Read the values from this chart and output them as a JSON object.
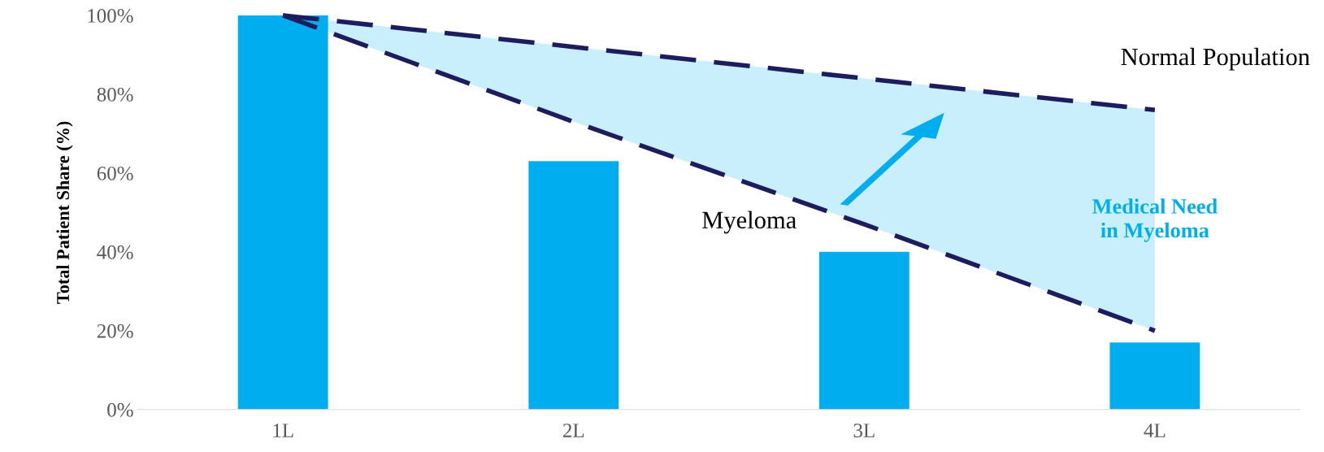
{
  "chart_data": {
    "type": "bar",
    "ylabel": "Total Patient Share (%)",
    "categories": [
      "1L",
      "2L",
      "3L",
      "4L"
    ],
    "series": [
      {
        "type": "bar",
        "color": "#00aeef",
        "values": [
          100,
          63,
          40,
          17
        ]
      },
      {
        "type": "line",
        "name": "Normal Population",
        "color": "#1c1c5e",
        "values": [
          100,
          92,
          84,
          76
        ],
        "lower": [
          100,
          73,
          47,
          20
        ],
        "upper": [
          100,
          92,
          84,
          76
        ]
      },
      {
        "type": "line",
        "name": "Myeloma",
        "color": "#1c1c5e",
        "values": [
          100,
          73,
          47,
          20
        ]
      }
    ],
    "annotations": [
      "Medical Need\nin Myeloma"
    ],
    "ylim": [
      0,
      100
    ],
    "yticks": [
      {
        "value": 0,
        "label": "0%"
      },
      {
        "value": 20,
        "label": "20%"
      },
      {
        "value": 40,
        "label": "40%"
      },
      {
        "value": 60,
        "label": "60%"
      },
      {
        "value": 80,
        "label": "80%"
      },
      {
        "value": 100,
        "label": "100%"
      }
    ],
    "grid": false,
    "legend": false,
    "line_style": "dashed",
    "marker": "none"
  }
}
